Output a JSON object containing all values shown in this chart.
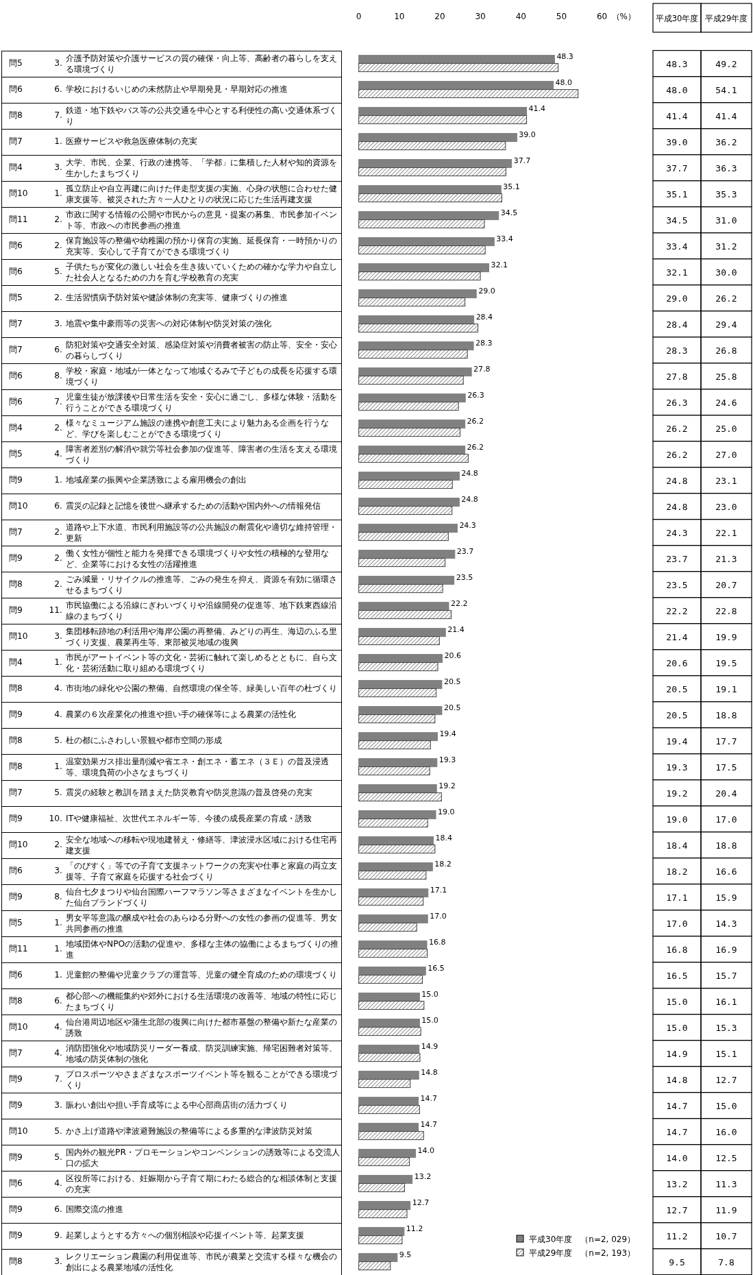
{
  "chart_data": {
    "type": "bar",
    "orientation": "horizontal",
    "xlabel": "（%）",
    "xlim": [
      0,
      60
    ],
    "xticks": [
      0,
      10,
      20,
      30,
      40,
      50,
      60
    ],
    "legend": "bottom right",
    "annotations": [
      "平成30年度",
      "平成29年度"
    ],
    "categories": [
      "問5 3. 介護予防対策や介護サービスの質の確保・向上等、高齢者の暮らしを支える環境づくり",
      "問6 6. 学校におけるいじめの未然防止や早期発見・早期対応の推進",
      "問8 7. 鉄道・地下鉄やバス等の公共交通を中心とする利便性の高い交通体系づくり",
      "問7 1. 医療サービスや救急医療体制の充実",
      "問4 3. 大学、市民、企業、行政の連携等、「学都」に集積した人材や知的資源を生かしたまちづくり",
      "問10 1. 孤立防止や自立再建に向けた伴走型支援の実施、心身の状態に合わせた健康支援等、被災された方々一人ひとりの状況に応じた生活再建支援",
      "問11 2. 市政に関する情報の公開や市民からの意見・提案の募集、市民参加イベント等、市政への市民参画の推進",
      "問6 2. 保育施設等の整備や幼稚園の預かり保育の実施、延長保育・一時預かりの充実等、安心して子育てができる環境づくり",
      "問6 5. 子供たちが変化の激しい社会を生き抜いていくための確かな学力や自立した社会人となるための力を育む学校教育の充実",
      "問5 2. 生活習慣病予防対策や健診体制の充実等、健康づくりの推進",
      "問7 3. 地震や集中豪雨等の災害への対応体制や防災対策の強化",
      "問7 6. 防犯対策や交通安全対策、感染症対策や消費者被害の防止等、安全・安心の暮らしづくり",
      "問6 8. 学校・家庭・地域が一体となって地域ぐるみで子どもの成長を応援する環境づくり",
      "問6 7. 児童生徒が放課後や日常生活を安全・安心に過ごし、多様な体験・活動を行うことができる環境づくり",
      "問4 2. 様々なミュージアム施設の連携や創意工夫により魅力ある企画を行うなど、学びを楽しむことができる環境づくり",
      "問5 4. 障害者差別の解消や就労等社会参加の促進等、障害者の生活を支える環境づくり",
      "問9 1. 地域産業の振興や企業誘致による雇用機会の創出",
      "問10 6. 震災の記録と記憶を後世へ継承するための活動や国内外への情報発信",
      "問7 2. 道路や上下水道、市民利用施設等の公共施設の耐震化や適切な維持管理・更新",
      "問9 2. 働く女性が個性と能力を発揮できる環境づくりや女性の積極的な登用など、企業等における女性の活躍推進",
      "問8 2. ごみ減量・リサイクルの推進等、ごみの発生を抑え、資源を有効に循環させるまちづくり",
      "問9 11. 市民協働による沿線にぎわいづくりや沿線開発の促進等、地下鉄東西線沿線のまちづくり",
      "問10 3. 集団移転跡地の利活用や海岸公園の再整備、みどりの再生、海辺のふる里づくり支援、農業再生等、東部被災地域の復興",
      "問4 1. 市民がアートイベント等の文化・芸術に触れて楽しめるとともに、自ら文化・芸術活動に取り組める環境づくり",
      "問8 4. 市街地の緑化や公園の整備、自然環境の保全等、緑美しい百年の杜づくり",
      "問9 4. 農業の６次産業化の推進や担い手の確保等による農業の活性化",
      "問8 5. 杜の都にふさわしい景観や都市空間の形成",
      "問8 1. 温室効果ガス排出量削減や省エネ・創エネ・蓄エネ（３Ｅ）の普及浸透等、環境負荷の小さなまちづくり",
      "問7 5. 震災の経験と教訓を踏まえた防災教育や防災意識の普及啓発の充実",
      "問9 10. ITや健康福祉、次世代エネルギー等、今後の成長産業の育成・誘致",
      "問10 2. 安全な地域への移転や現地建替え・修繕等、津波浸水区域における住宅再建支援",
      "問6 3. 「のびすく」等での子育て支援ネットワークの充実や仕事と家庭の両立支援等、子育て家庭を応援する社会づくり",
      "問9 8. 仙台七夕まつりや仙台国際ハーフマラソン等さまざまなイベントを生かした仙台ブランドづくり",
      "問5 1. 男女平等意識の醸成や社会のあらゆる分野への女性の参画の促進等、男女共同参画の推進",
      "問11 1. 地域団体やNPOの活動の促進や、多様な主体の協働によるまちづくりの推進",
      "問6 1. 児童館の整備や児童クラブの運営等、児童の健全育成のための環境づくり",
      "問8 6. 都心部への機能集約や郊外における生活環境の改善等、地域の特性に応じたまちづくり",
      "問10 4. 仙台港周辺地区や蒲生北部の復興に向けた都市基盤の整備や新たな産業の誘致",
      "問7 4. 消防団強化や地域防災リーダー養成、防災訓練実施、帰宅困難者対策等、地域の防災体制の強化",
      "問9 7. プロスポーツやさまざまなスポーツイベント等を観ることができる環境づくり",
      "問9 3. 賑わい創出や担い手育成等による中心部商店街の活力づくり",
      "問10 5. かさ上げ道路や津波避難施設の整備等による多重的な津波防災対策",
      "問9 5. 国内外の観光PR・プロモーションやコンベンションの誘致等による交流人口の拡大",
      "問6 4. 区役所等における、妊娠期から子育て期にわたる総合的な相談体制と支援の充実",
      "問9 6. 国際交流の推進",
      "問9 9. 起業しようとする方々への個別相談や応援イベント等、起業支援",
      "問8 3. レクリエーション農園の利用促進等、市民が農業と交流する様々な機会の創出による農業地域の活性化"
    ],
    "series": [
      {
        "name": "平成30年度　（n=2, 029）",
        "color": "#808080",
        "values": [
          48.3,
          48.0,
          41.4,
          39.0,
          37.7,
          35.1,
          34.5,
          33.4,
          32.1,
          29.0,
          28.4,
          28.3,
          27.8,
          26.3,
          26.2,
          26.2,
          24.8,
          24.8,
          24.3,
          23.7,
          23.5,
          22.2,
          21.4,
          20.6,
          20.5,
          20.5,
          19.4,
          19.3,
          19.2,
          19.0,
          18.4,
          18.2,
          17.1,
          17.0,
          16.8,
          16.5,
          15.0,
          15.0,
          14.9,
          14.8,
          14.7,
          14.7,
          14.0,
          13.2,
          12.7,
          11.2,
          9.5
        ],
        "value_labels": [
          "48.3",
          "48.0",
          "41.4",
          "39.0",
          "37.7",
          "35.1",
          "34.5",
          "33.4",
          "32.1",
          "29.0",
          "28.4",
          "28.3",
          "27.8",
          "26.3",
          "26.2",
          "26.2",
          "24.8",
          "24.8",
          "24.3",
          "23.7",
          "23.5",
          "22.2",
          "21.4",
          "20.6",
          "20.5",
          "20.5",
          "19.4",
          "19.3",
          "19.2",
          "19.0",
          "18.4",
          "18.2",
          "17.1",
          "17.0",
          "16.8",
          "16.5",
          "15.0",
          "15.0",
          "14.9",
          "14.8",
          "14.7",
          "14.7",
          "14.0",
          "13.2",
          "12.7",
          "11.2",
          "9.5"
        ]
      },
      {
        "name": "平成29年度　（n=2, 193）",
        "color": "#404040",
        "values": [
          49.2,
          54.1,
          41.4,
          36.2,
          36.3,
          35.3,
          31.0,
          31.2,
          30.0,
          26.2,
          29.4,
          26.8,
          25.8,
          24.6,
          25.0,
          27.0,
          23.1,
          23.0,
          22.1,
          21.3,
          20.7,
          22.8,
          19.9,
          19.5,
          19.1,
          18.8,
          17.7,
          17.5,
          20.4,
          17.0,
          18.8,
          16.6,
          15.9,
          14.3,
          16.9,
          15.7,
          16.1,
          15.3,
          15.1,
          12.7,
          15.0,
          16.0,
          12.5,
          11.3,
          11.9,
          10.7,
          7.8
        ],
        "value_labels": [
          "49.2",
          "54.1",
          "41.4",
          "36.2",
          "36.3",
          "35.3",
          "31.0",
          "31.2",
          "30.0",
          "26.2",
          "29.4",
          "26.8",
          "25.8",
          "24.6",
          "25.0",
          "27.0",
          "23.1",
          "23.0",
          "22.1",
          "21.3",
          "20.7",
          "22.8",
          "19.9",
          "19.5",
          "19.1",
          "18.8",
          "17.7",
          "17.5",
          "20.4",
          "17.0",
          "18.8",
          "16.6",
          "15.9",
          "14.3",
          "16.9",
          "15.7",
          "16.1",
          "15.3",
          "15.1",
          "12.7",
          "15.0",
          "16.0",
          "12.5",
          "11.3",
          "11.9",
          "10.7",
          "7.8"
        ]
      }
    ]
  }
}
